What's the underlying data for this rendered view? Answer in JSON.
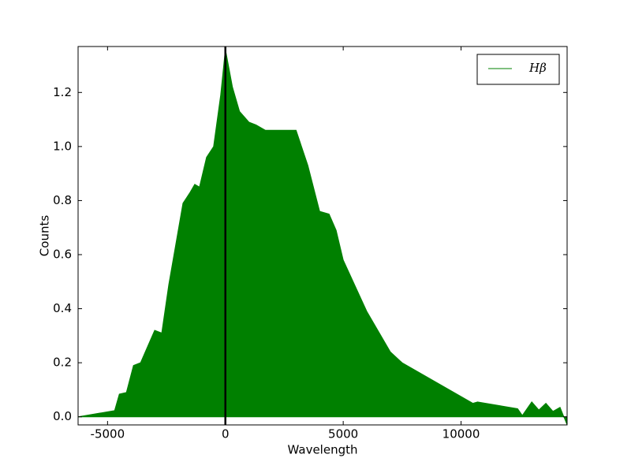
{
  "chart_data": {
    "type": "area",
    "xlabel": "Wavelength",
    "ylabel": "Counts",
    "x": [
      -6250,
      -4700,
      -4500,
      -4200,
      -3900,
      -3600,
      -3300,
      -3000,
      -2700,
      -2400,
      -2100,
      -1800,
      -1500,
      -1300,
      -1100,
      -800,
      -500,
      -200,
      0,
      300,
      600,
      1000,
      1300,
      1700,
      2500,
      3000,
      3500,
      4000,
      4400,
      4700,
      5000,
      6000,
      7000,
      7500,
      10500,
      10700,
      12400,
      12600,
      13000,
      13300,
      13600,
      13900,
      14200,
      14500
    ],
    "series": [
      {
        "name": "Hβ",
        "color": "#008000",
        "values": [
          0,
          0.023,
          0.084,
          0.09,
          0.19,
          0.2,
          0.26,
          0.32,
          0.31,
          0.49,
          0.64,
          0.79,
          0.83,
          0.86,
          0.85,
          0.96,
          1.0,
          1.19,
          1.36,
          1.22,
          1.13,
          1.09,
          1.08,
          1.06,
          1.06,
          1.06,
          0.93,
          0.76,
          0.75,
          0.69,
          0.58,
          0.39,
          0.24,
          0.2,
          0.05,
          0.055,
          0.03,
          0.005,
          0.055,
          0.025,
          0.05,
          0.02,
          0.035,
          -0.03
        ]
      }
    ],
    "vline": {
      "x": 0,
      "color": "#000000"
    },
    "xlim": [
      -6250,
      14500
    ],
    "ylim": [
      -0.03,
      1.37
    ],
    "xticks": [
      -5000,
      0,
      5000,
      10000
    ],
    "yticks": [
      {
        "value": 0,
        "label": "0.0"
      },
      0.2,
      0.4,
      0.6,
      0.8,
      {
        "value": 1,
        "label": "1.0"
      },
      1.2
    ],
    "legend": "upper right"
  }
}
